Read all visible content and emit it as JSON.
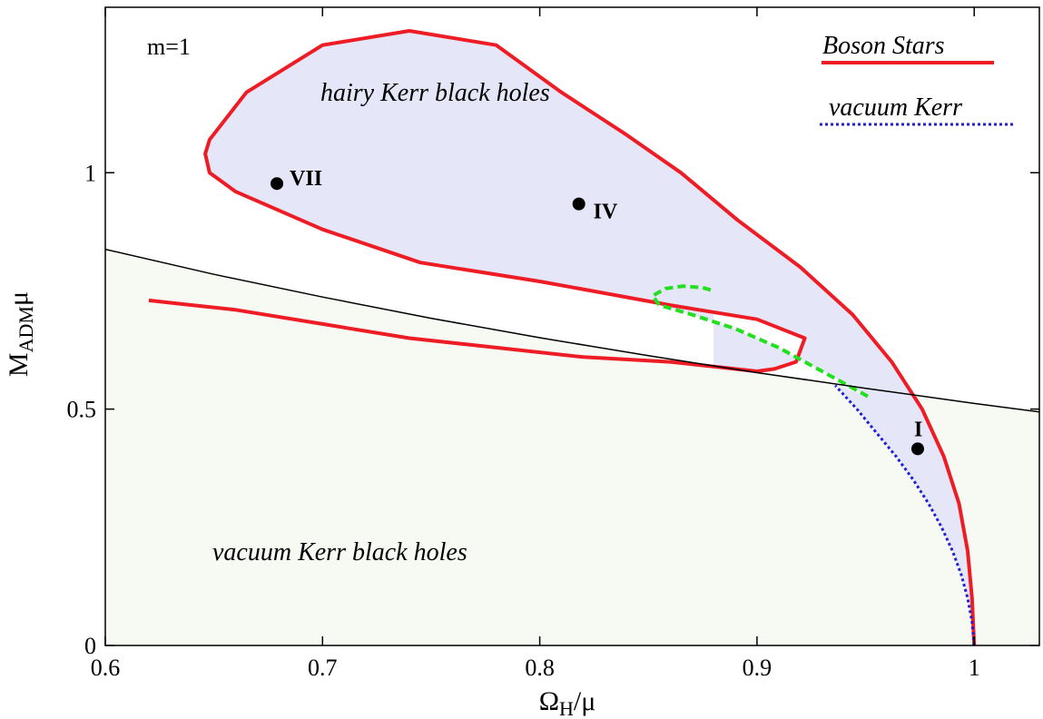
{
  "chart_data": {
    "type": "line",
    "xlabel": "Ω_H/μ",
    "ylabel": "M_ADM μ",
    "xlim": [
      0.6,
      1.03
    ],
    "ylim": [
      0,
      1.35
    ],
    "x_ticks": [
      "0.6",
      "0.7",
      "0.8",
      "0.9",
      "1"
    ],
    "y_ticks": [
      "0",
      "0.5",
      "1"
    ],
    "annotation_m": "m=1",
    "region_labels": {
      "hairy": "hairy Kerr black holes",
      "vacuum": "vacuum Kerr black holes"
    },
    "legend": {
      "boson": "Boson Stars",
      "kerr": "vacuum Kerr"
    },
    "colors": {
      "boson": "#ee1c25",
      "kerr": "#1f1fd6",
      "green": "#22e01e",
      "hairy_fill": "#e5e6f8",
      "vacuum_fill": "#f6faf2",
      "extremal": "#000000"
    },
    "series": [
      {
        "name": "Boson Stars",
        "style": "solid-red",
        "points": [
          [
            1.0,
            0.0
          ],
          [
            0.999,
            0.1
          ],
          [
            0.997,
            0.2
          ],
          [
            0.993,
            0.3
          ],
          [
            0.986,
            0.4
          ],
          [
            0.976,
            0.5
          ],
          [
            0.962,
            0.6
          ],
          [
            0.944,
            0.7
          ],
          [
            0.92,
            0.8
          ],
          [
            0.891,
            0.9
          ],
          [
            0.865,
            1.0
          ],
          [
            0.84,
            1.08
          ],
          [
            0.81,
            1.17
          ],
          [
            0.78,
            1.27
          ],
          [
            0.74,
            1.3
          ],
          [
            0.7,
            1.27
          ],
          [
            0.665,
            1.17
          ],
          [
            0.648,
            1.07
          ],
          [
            0.646,
            1.04
          ],
          [
            0.648,
            1.0
          ],
          [
            0.66,
            0.96
          ],
          [
            0.7,
            0.88
          ],
          [
            0.745,
            0.81
          ],
          [
            0.8,
            0.77
          ],
          [
            0.86,
            0.72
          ],
          [
            0.9,
            0.69
          ],
          [
            0.922,
            0.65
          ],
          [
            0.918,
            0.6
          ],
          [
            0.908,
            0.585
          ],
          [
            0.9,
            0.58
          ],
          [
            0.88,
            0.59
          ],
          [
            0.86,
            0.6
          ],
          [
            0.82,
            0.61
          ],
          [
            0.78,
            0.63
          ],
          [
            0.74,
            0.65
          ],
          [
            0.7,
            0.68
          ],
          [
            0.66,
            0.71
          ],
          [
            0.64,
            0.72
          ],
          [
            0.62,
            0.73
          ]
        ]
      },
      {
        "name": "vacuum Kerr",
        "style": "dotted-blue",
        "points": [
          [
            1.0,
            0.0
          ],
          [
            0.999,
            0.05
          ],
          [
            0.997,
            0.1
          ],
          [
            0.994,
            0.15
          ],
          [
            0.99,
            0.2
          ],
          [
            0.985,
            0.25
          ],
          [
            0.979,
            0.3
          ],
          [
            0.972,
            0.35
          ],
          [
            0.964,
            0.4
          ],
          [
            0.955,
            0.45
          ],
          [
            0.946,
            0.5
          ],
          [
            0.936,
            0.55
          ]
        ]
      },
      {
        "style": "dashed-green",
        "points": [
          [
            0.951,
            0.527
          ],
          [
            0.93,
            0.58
          ],
          [
            0.91,
            0.63
          ],
          [
            0.89,
            0.67
          ],
          [
            0.87,
            0.7
          ],
          [
            0.855,
            0.72
          ],
          [
            0.852,
            0.74
          ],
          [
            0.858,
            0.755
          ],
          [
            0.866,
            0.76
          ],
          [
            0.875,
            0.757
          ],
          [
            0.88,
            0.75
          ]
        ]
      },
      {
        "style": "solid-black",
        "points": [
          [
            0.6,
            0.838
          ],
          [
            0.65,
            0.785
          ],
          [
            0.7,
            0.737
          ],
          [
            0.75,
            0.692
          ],
          [
            0.8,
            0.651
          ],
          [
            0.85,
            0.613
          ],
          [
            0.9,
            0.577
          ],
          [
            0.95,
            0.544
          ],
          [
            1.0,
            0.512
          ],
          [
            1.03,
            0.494
          ]
        ]
      }
    ],
    "labeled_points": [
      {
        "label": "VII",
        "x": 0.679,
        "y": 0.977
      },
      {
        "label": "IV",
        "x": 0.818,
        "y": 0.934
      },
      {
        "label": "I",
        "x": 0.974,
        "y": 0.416
      }
    ]
  }
}
